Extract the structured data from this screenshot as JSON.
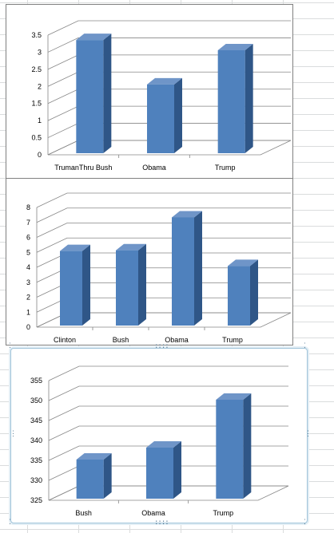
{
  "chart_data": [
    {
      "type": "bar",
      "categories": [
        "TrumanThru Bush",
        "Obama",
        "Trump"
      ],
      "values": [
        3.45,
        2.15,
        3.15
      ],
      "title": "",
      "xlabel": "",
      "ylabel": "",
      "ylim": [
        0,
        3.5
      ],
      "yticks": [
        "0",
        "0.5",
        "1",
        "1.5",
        "2",
        "2.5",
        "3",
        "3.5"
      ],
      "style": "3d-column",
      "grid": true,
      "legend": "none"
    },
    {
      "type": "bar",
      "categories": [
        "Clinton",
        "Bush",
        "Obama",
        "Trump"
      ],
      "values": [
        5.3,
        5.35,
        7.55,
        4.3
      ],
      "title": "",
      "xlabel": "",
      "ylabel": "",
      "ylim": [
        0,
        8
      ],
      "yticks": [
        "0",
        "1",
        "2",
        "3",
        "4",
        "5",
        "6",
        "7",
        "8"
      ],
      "style": "3d-column",
      "grid": true,
      "legend": "none"
    },
    {
      "type": "bar",
      "categories": [
        "Bush",
        "Obama",
        "Trump"
      ],
      "values": [
        336,
        339,
        351
      ],
      "title": "",
      "xlabel": "",
      "ylabel": "",
      "ylim": [
        325,
        355
      ],
      "yticks": [
        "325",
        "330",
        "335",
        "340",
        "345",
        "350",
        "355"
      ],
      "style": "3d-column",
      "grid": true,
      "legend": "none",
      "selected": true
    }
  ],
  "colors": {
    "bar_front": "#4f81bd",
    "bar_side": "#2f5687",
    "bar_top": "#6f95c8",
    "gridline": "#868686",
    "selection_border": "#9ec3d9"
  }
}
